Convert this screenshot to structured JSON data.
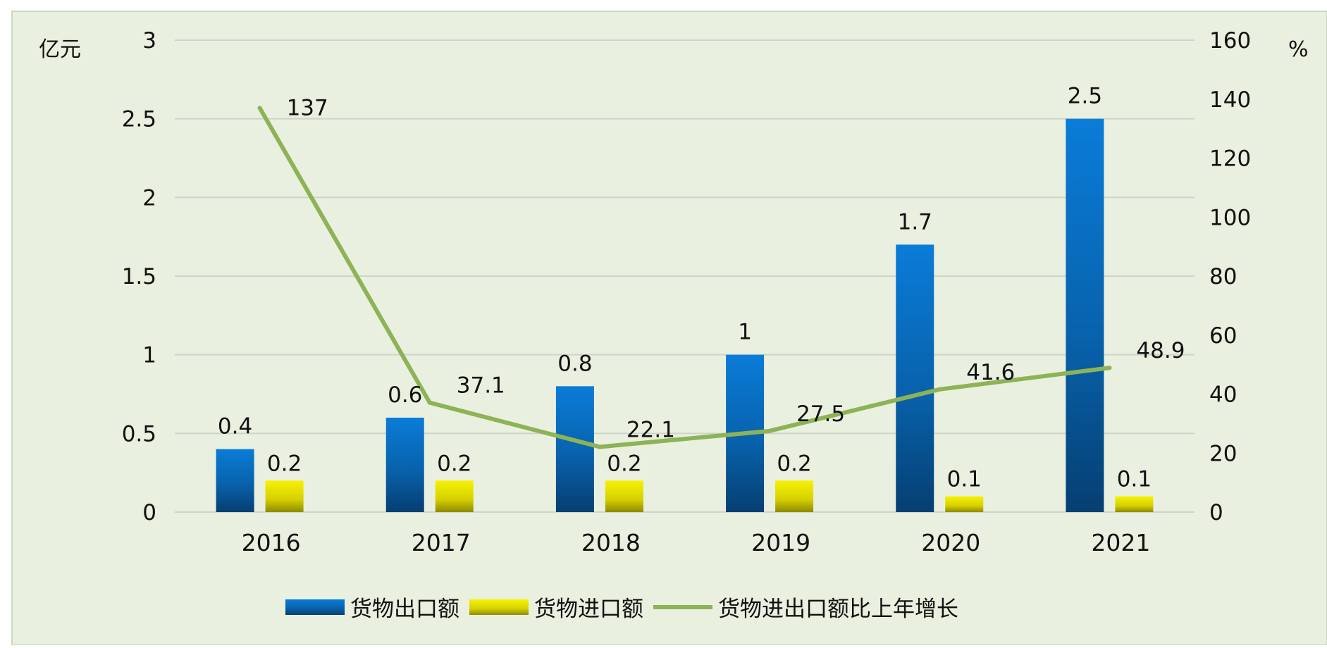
{
  "chart_data": {
    "type": "bar",
    "categories": [
      "2016",
      "2017",
      "2018",
      "2019",
      "2020",
      "2021"
    ],
    "left_axis": {
      "unit": "亿元",
      "ylim": [
        0,
        3
      ],
      "ticks": [
        "0",
        "0.5",
        "1",
        "1.5",
        "2",
        "2.5",
        "3"
      ]
    },
    "right_axis": {
      "unit": "%",
      "ylim": [
        0,
        160
      ],
      "ticks": [
        "0",
        "20",
        "40",
        "60",
        "80",
        "100",
        "120",
        "140",
        "160"
      ]
    },
    "series": [
      {
        "name": "货物出口额",
        "kind": "bar",
        "axis": "left",
        "color": "#0a72c8",
        "values": [
          0.4,
          0.6,
          0.8,
          1,
          1.7,
          2.5
        ],
        "labels": [
          "0.4",
          "0.6",
          "0.8",
          "1",
          "1.7",
          "2.5"
        ]
      },
      {
        "name": "货物进口额",
        "kind": "bar",
        "axis": "left",
        "color": "#e8e400",
        "values": [
          0.2,
          0.2,
          0.2,
          0.2,
          0.1,
          0.1
        ],
        "labels": [
          "0.2",
          "0.2",
          "0.2",
          "0.2",
          "0.1",
          "0.1"
        ]
      },
      {
        "name": "货物进出口额比上年增长",
        "kind": "line",
        "axis": "right",
        "color": "#8db356",
        "values": [
          137,
          37.1,
          22.1,
          27.5,
          41.6,
          48.9
        ],
        "labels": [
          "137",
          "37.1",
          "22.1",
          "27.5",
          "41.6",
          "48.9"
        ]
      }
    ],
    "grid": true,
    "legend_position": "bottom",
    "background": "#eaf0e0"
  }
}
